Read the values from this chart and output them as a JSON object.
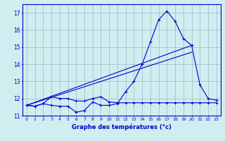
{
  "x": [
    0,
    1,
    2,
    3,
    4,
    5,
    6,
    7,
    8,
    9,
    10,
    11,
    12,
    13,
    14,
    15,
    16,
    17,
    18,
    19,
    20,
    21,
    22,
    23
  ],
  "line1": [
    11.6,
    11.55,
    11.7,
    11.6,
    11.55,
    11.55,
    11.2,
    11.3,
    11.8,
    11.6,
    11.6,
    11.7,
    12.4,
    13.0,
    14.0,
    15.3,
    16.6,
    17.1,
    16.5,
    15.5,
    15.1,
    12.8,
    12.0,
    11.9
  ],
  "line2": [
    11.6,
    11.55,
    11.7,
    12.1,
    12.0,
    12.0,
    11.85,
    11.85,
    12.0,
    12.1,
    11.8,
    11.75,
    11.75,
    11.75,
    11.75,
    11.75,
    11.75,
    11.75,
    11.75,
    11.75,
    11.75,
    11.75,
    11.75,
    11.75
  ],
  "line3_x": [
    0,
    20
  ],
  "line3_y": [
    11.6,
    15.1
  ],
  "line4_x": [
    0,
    20
  ],
  "line4_y": [
    11.6,
    14.7
  ],
  "xlabel": "Graphe des températures (°c)",
  "ylim": [
    11.0,
    17.5
  ],
  "xlim": [
    -0.5,
    23.5
  ],
  "yticks": [
    11,
    12,
    13,
    14,
    15,
    16,
    17
  ],
  "xticks": [
    0,
    1,
    2,
    3,
    4,
    5,
    6,
    7,
    8,
    9,
    10,
    11,
    12,
    13,
    14,
    15,
    16,
    17,
    18,
    19,
    20,
    21,
    22,
    23
  ],
  "bg_color": "#ceeef0",
  "line_color": "#0000cc",
  "grid_color": "#a0b8c8"
}
